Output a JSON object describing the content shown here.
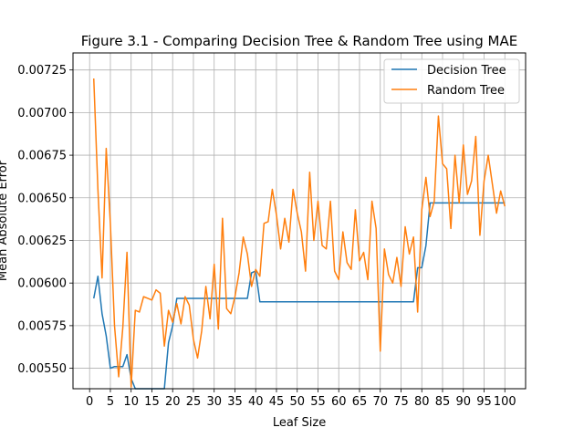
{
  "chart_data": {
    "type": "line",
    "title": "Figure 3.1 - Comparing Decision Tree & Random Tree using MAE",
    "xlabel": "Leaf Size",
    "ylabel": "Mean Absolute Error",
    "xlim": [
      -4,
      105
    ],
    "ylim": [
      0.00538,
      0.00735
    ],
    "grid": true,
    "legend_position": "top-right",
    "x_ticks": [
      0,
      5,
      10,
      15,
      20,
      25,
      30,
      35,
      40,
      45,
      50,
      55,
      60,
      65,
      70,
      75,
      80,
      85,
      90,
      95,
      100
    ],
    "x_tick_labels": [
      "0",
      "5",
      "10",
      "15",
      "20",
      "25",
      "30",
      "35",
      "40",
      "45",
      "50",
      "55",
      "60",
      "65",
      "70",
      "75",
      "80",
      "85",
      "90",
      "95",
      "100"
    ],
    "y_ticks": [
      0.0055,
      0.00575,
      0.006,
      0.00625,
      0.0065,
      0.00675,
      0.007,
      0.00725
    ],
    "y_tick_labels": [
      "0.00550",
      "0.00575",
      "0.00600",
      "0.00625",
      "0.00650",
      "0.00675",
      "0.00700",
      "0.00725"
    ],
    "series": [
      {
        "name": "Decision Tree",
        "color": "#1f77b4",
        "x": [
          1,
          2,
          3,
          4,
          5,
          6,
          7,
          8,
          9,
          10,
          11,
          12,
          13,
          14,
          15,
          16,
          17,
          18,
          19,
          20,
          21,
          22,
          23,
          24,
          25,
          26,
          27,
          28,
          29,
          30,
          31,
          32,
          33,
          34,
          35,
          36,
          37,
          38,
          39,
          40,
          41,
          42,
          43,
          44,
          45,
          46,
          47,
          48,
          49,
          50,
          51,
          52,
          53,
          54,
          55,
          56,
          57,
          58,
          59,
          60,
          61,
          62,
          63,
          64,
          65,
          66,
          67,
          68,
          69,
          70,
          71,
          72,
          73,
          74,
          75,
          76,
          77,
          78,
          79,
          80,
          81,
          82,
          83,
          84,
          85,
          86,
          87,
          88,
          89,
          90,
          91,
          92,
          93,
          94,
          95,
          96,
          97,
          98,
          99,
          100
        ],
        "values": [
          0.00591,
          0.00604,
          0.00582,
          0.00569,
          0.0055,
          0.00551,
          0.00551,
          0.00551,
          0.00558,
          0.00544,
          0.00538,
          0.00538,
          0.00538,
          0.00538,
          0.00538,
          0.00538,
          0.00538,
          0.00538,
          0.00565,
          0.00575,
          0.00591,
          0.00591,
          0.00591,
          0.00591,
          0.00591,
          0.00591,
          0.00591,
          0.00591,
          0.00591,
          0.00591,
          0.00591,
          0.00591,
          0.00591,
          0.00591,
          0.00591,
          0.00591,
          0.00591,
          0.00591,
          0.00606,
          0.00607,
          0.00589,
          0.00589,
          0.00589,
          0.00589,
          0.00589,
          0.00589,
          0.00589,
          0.00589,
          0.00589,
          0.00589,
          0.00589,
          0.00589,
          0.00589,
          0.00589,
          0.00589,
          0.00589,
          0.00589,
          0.00589,
          0.00589,
          0.00589,
          0.00589,
          0.00589,
          0.00589,
          0.00589,
          0.00589,
          0.00589,
          0.00589,
          0.00589,
          0.00589,
          0.00589,
          0.00589,
          0.00589,
          0.00589,
          0.00589,
          0.00589,
          0.00589,
          0.00589,
          0.00589,
          0.00609,
          0.00609,
          0.00622,
          0.00647,
          0.00647,
          0.00647,
          0.00647,
          0.00647,
          0.00647,
          0.00647,
          0.00647,
          0.00647,
          0.00647,
          0.00647,
          0.00647,
          0.00647,
          0.00647,
          0.00647,
          0.00647,
          0.00647,
          0.00647,
          0.00647
        ]
      },
      {
        "name": "Random Tree",
        "color": "#ff7f0e",
        "x": [
          1,
          2,
          3,
          4,
          5,
          6,
          7,
          8,
          9,
          10,
          11,
          12,
          13,
          14,
          15,
          16,
          17,
          18,
          19,
          20,
          21,
          22,
          23,
          24,
          25,
          26,
          27,
          28,
          29,
          30,
          31,
          32,
          33,
          34,
          35,
          36,
          37,
          38,
          39,
          40,
          41,
          42,
          43,
          44,
          45,
          46,
          47,
          48,
          49,
          50,
          51,
          52,
          53,
          54,
          55,
          56,
          57,
          58,
          59,
          60,
          61,
          62,
          63,
          64,
          65,
          66,
          67,
          68,
          69,
          70,
          71,
          72,
          73,
          74,
          75,
          76,
          77,
          78,
          79,
          80,
          81,
          82,
          83,
          84,
          85,
          86,
          87,
          88,
          89,
          90,
          91,
          92,
          93,
          94,
          95,
          96,
          97,
          98,
          99,
          100
        ],
        "values": [
          0.0072,
          0.00655,
          0.00603,
          0.00679,
          0.00635,
          0.00575,
          0.00545,
          0.00574,
          0.00618,
          0.00539,
          0.00584,
          0.00583,
          0.00592,
          0.00591,
          0.0059,
          0.00596,
          0.00594,
          0.00563,
          0.00584,
          0.00577,
          0.00588,
          0.00576,
          0.00592,
          0.00587,
          0.00567,
          0.00556,
          0.00572,
          0.00598,
          0.00579,
          0.00611,
          0.00573,
          0.00638,
          0.00585,
          0.00582,
          0.00592,
          0.00606,
          0.00627,
          0.00617,
          0.00598,
          0.00608,
          0.00604,
          0.00635,
          0.00636,
          0.00655,
          0.0064,
          0.0062,
          0.00638,
          0.00624,
          0.00655,
          0.00641,
          0.0063,
          0.00607,
          0.00665,
          0.00625,
          0.00648,
          0.00622,
          0.0062,
          0.00648,
          0.00607,
          0.00602,
          0.0063,
          0.00612,
          0.00608,
          0.00643,
          0.00613,
          0.00618,
          0.00602,
          0.00648,
          0.00632,
          0.0056,
          0.0062,
          0.00605,
          0.006,
          0.00615,
          0.00598,
          0.00633,
          0.00617,
          0.00627,
          0.00583,
          0.00643,
          0.00662,
          0.00639,
          0.00648,
          0.00698,
          0.0067,
          0.00667,
          0.00632,
          0.00675,
          0.00647,
          0.00681,
          0.00652,
          0.0066,
          0.00686,
          0.00628,
          0.0066,
          0.00675,
          0.00658,
          0.00641,
          0.00654,
          0.00645
        ]
      }
    ]
  }
}
